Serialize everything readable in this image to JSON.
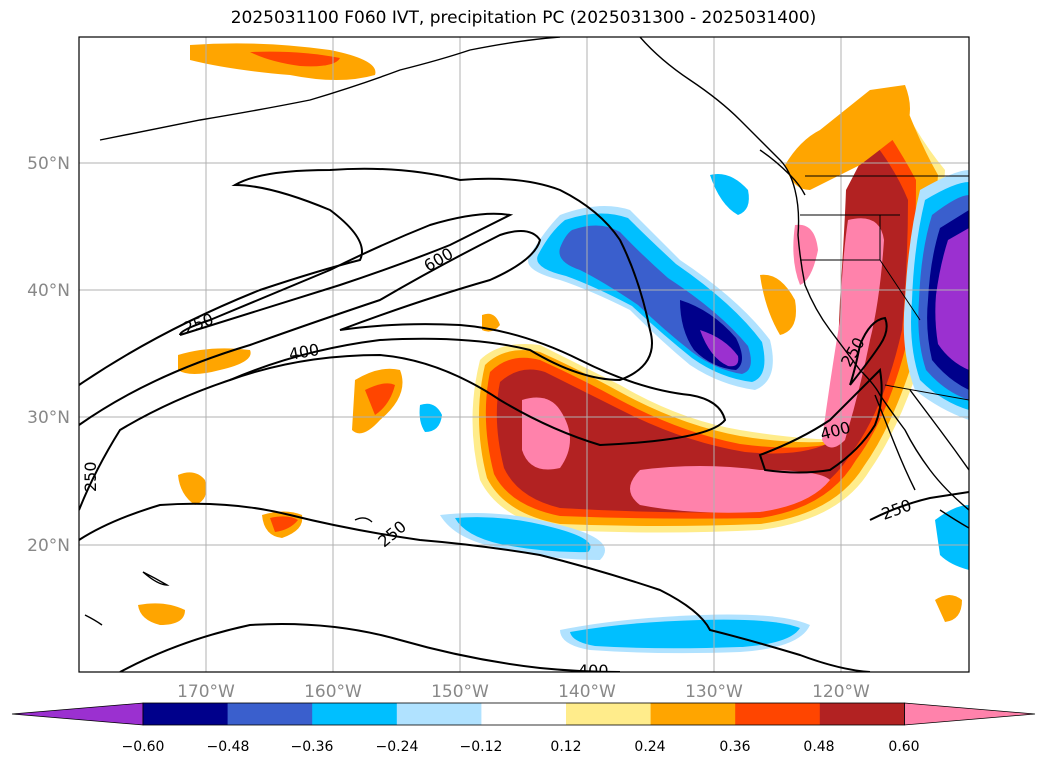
{
  "title": "2025031100 F060 IVT, precipitation PC (2025031300 - 2025031400)",
  "axes": {
    "lon_labels": [
      "170°W",
      "160°W",
      "150°W",
      "140°W",
      "130°W",
      "120°W"
    ],
    "lat_labels": [
      "50°N",
      "40°N",
      "30°N",
      "20°N"
    ]
  },
  "ivt_contour_labels": [
    "250",
    "400",
    "600",
    "250",
    "400",
    "250",
    "250",
    "250",
    "400"
  ],
  "colorbar": {
    "labels": [
      "−0.60",
      "−0.48",
      "−0.36",
      "−0.24",
      "−0.12",
      "0.12",
      "0.24",
      "0.36",
      "0.48",
      "0.60"
    ],
    "colors": [
      "#9b30d0",
      "#00008b",
      "#3a5fcd",
      "#00bfff",
      "#b0e2ff",
      "#ffffff",
      "#ffec8b",
      "#ffa500",
      "#ff4500",
      "#b22222",
      "#ff82ab"
    ]
  }
}
